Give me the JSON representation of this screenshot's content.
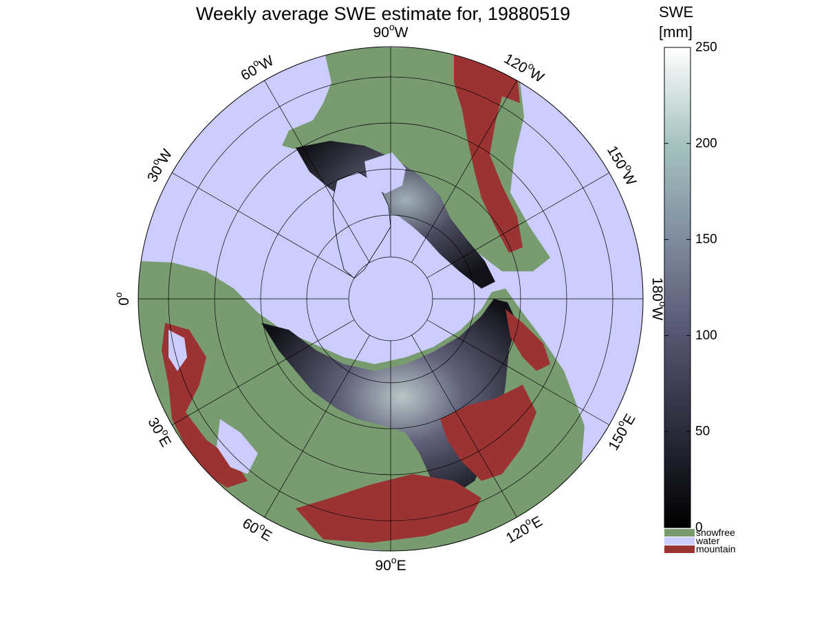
{
  "title": "Weekly average SWE estimate for, 19880519",
  "map": {
    "projection": "north polar stereographic",
    "longitude_labels": [
      {
        "text": "90",
        "hemisphere": "W",
        "bearing_deg": 0
      },
      {
        "text": "120",
        "hemisphere": "W",
        "bearing_deg": 30
      },
      {
        "text": "150",
        "hemisphere": "W",
        "bearing_deg": 60
      },
      {
        "text": "180",
        "hemisphere": "W",
        "bearing_deg": 90
      },
      {
        "text": "150",
        "hemisphere": "E",
        "bearing_deg": 120
      },
      {
        "text": "120",
        "hemisphere": "E",
        "bearing_deg": 150
      },
      {
        "text": "90",
        "hemisphere": "E",
        "bearing_deg": 180
      },
      {
        "text": "60",
        "hemisphere": "E",
        "bearing_deg": 210
      },
      {
        "text": "30",
        "hemisphere": "E",
        "bearing_deg": 240
      },
      {
        "text": "0",
        "hemisphere": "",
        "bearing_deg": 270
      },
      {
        "text": "30",
        "hemisphere": "W",
        "bearing_deg": 300
      },
      {
        "text": "60",
        "hemisphere": "W",
        "bearing_deg": 330
      }
    ],
    "colors": {
      "water": "#ccccff",
      "snowfree": "#789b70",
      "mountain": "#9b3333",
      "grid": "#000000"
    }
  },
  "colorbar": {
    "title_line1": "SWE",
    "title_line2": "[mm]",
    "min": 0,
    "max": 250,
    "ticks": [
      {
        "value": 0,
        "label": "0"
      },
      {
        "value": 50,
        "label": "50"
      },
      {
        "value": 100,
        "label": "100"
      },
      {
        "value": 150,
        "label": "150"
      },
      {
        "value": 200,
        "label": "200"
      },
      {
        "value": 250,
        "label": "250"
      }
    ],
    "gradient_stops": [
      "#000000",
      "#2a2a3a",
      "#555570",
      "#7f8b9e",
      "#a6c3c0",
      "#ffffff"
    ],
    "categories": [
      {
        "label": "snowfree",
        "color": "#789b70"
      },
      {
        "label": "water",
        "color": "#ccccff"
      },
      {
        "label": "mountain",
        "color": "#9b3333"
      }
    ]
  }
}
